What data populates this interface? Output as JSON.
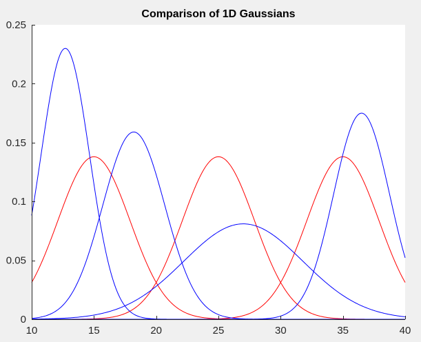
{
  "chart_data": {
    "type": "line",
    "title": "Comparison of 1D Gaussians",
    "xlabel": "",
    "ylabel": "",
    "xlim": [
      10,
      40
    ],
    "ylim": [
      0,
      0.25
    ],
    "x_ticks": [
      10,
      15,
      20,
      25,
      30,
      35,
      40
    ],
    "y_ticks": [
      0,
      0.05,
      0.1,
      0.15,
      0.2,
      0.25
    ],
    "x_tick_labels": [
      "10",
      "15",
      "20",
      "25",
      "30",
      "35",
      "40"
    ],
    "y_tick_labels": [
      "0",
      "0.05",
      "0.1",
      "0.15",
      "0.2",
      "0.25"
    ],
    "grid": false,
    "background": "#ffffff",
    "figure_background": "#f0f0f0",
    "series": [
      {
        "color": "#ff0000",
        "peak_x": 15,
        "peak_y": 0.138,
        "std": 2.9,
        "weight": 1
      },
      {
        "color": "#ff0000",
        "peak_x": 25,
        "peak_y": 0.138,
        "std": 2.9,
        "weight": 1
      },
      {
        "color": "#ff0000",
        "peak_x": 35,
        "peak_y": 0.138,
        "std": 2.9,
        "weight": 1
      },
      {
        "color": "#0000ff",
        "peak_x": 12.7,
        "peak_y": 0.23,
        "std": 1.95,
        "weight": 1
      },
      {
        "color": "#0000ff",
        "peak_x": 18.2,
        "peak_y": 0.159,
        "std": 2.5,
        "weight": 1
      },
      {
        "color": "#0000ff",
        "peak_x": 27,
        "peak_y": 0.081,
        "std": 4.8,
        "weight": 1
      },
      {
        "color": "#0000ff",
        "peak_x": 36.5,
        "peak_y": 0.175,
        "std": 2.25,
        "weight": 1
      }
    ]
  }
}
